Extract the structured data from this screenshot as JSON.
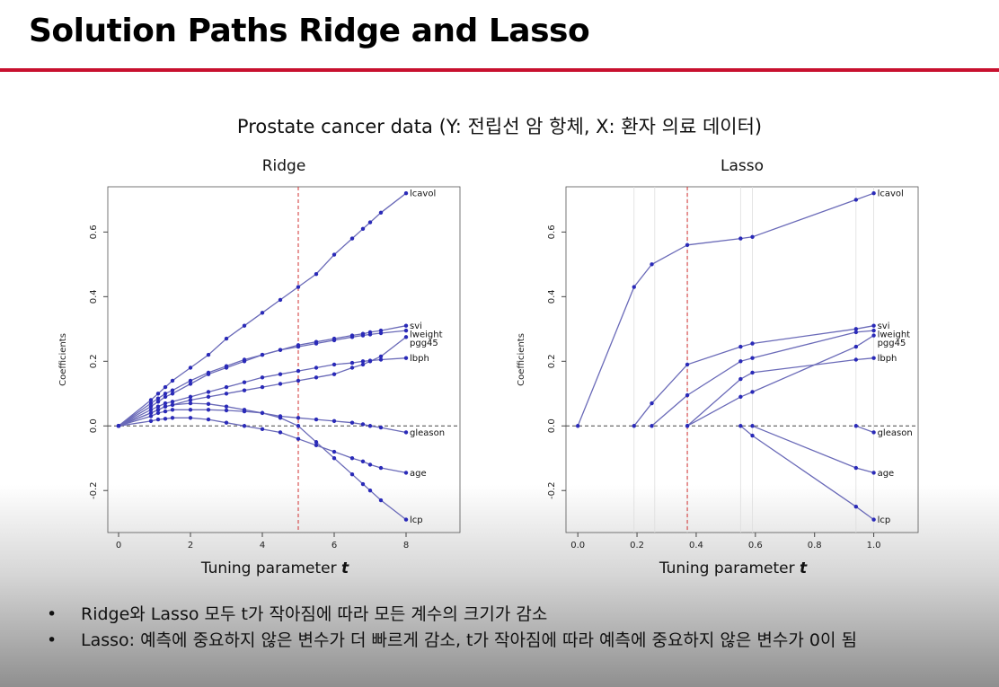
{
  "slide": {
    "title": "Solution Paths Ridge and Lasso",
    "subtitle": "Prostate cancer data (Y: 전립선 암 항체, X: 환자 의료 데이터)",
    "bullets": [
      "Ridge와 Lasso 모두 t가 작아짐에 따라 모든 계수의 크기가 감소",
      "Lasso: 예측에 중요하지 않은 변수가 더 빠르게 감소, t가 작아짐에 따라 예측에 중요하지 않은 변수가 0이 됨"
    ],
    "bullet_symbol": "•"
  },
  "colors": {
    "accent_rule": "#c8102e",
    "path": "#2a2ab8",
    "path_line": "#6a6ab8",
    "vline": "#d03030"
  },
  "chart_data": [
    {
      "type": "line",
      "title": "Ridge",
      "xlabel": "Tuning parameter ",
      "xlabel_symbol": "t",
      "ylabel": "Coefficients",
      "xlim": [
        -0.3,
        9.5
      ],
      "ylim": [
        -0.33,
        0.74
      ],
      "xticks": [
        0,
        2,
        4,
        6,
        8
      ],
      "yticks": [
        -0.2,
        0.0,
        0.2,
        0.4,
        0.6
      ],
      "vline": 5.0,
      "hline": 0.0,
      "markers": true,
      "x": [
        0,
        0.9,
        1.1,
        1.3,
        1.5,
        2.0,
        2.5,
        3.0,
        3.5,
        4.0,
        4.5,
        5.0,
        5.5,
        6.0,
        6.5,
        6.8,
        7.0,
        7.3,
        8.0
      ],
      "series": [
        {
          "name": "lcavol",
          "values": [
            0,
            0.08,
            0.1,
            0.12,
            0.14,
            0.18,
            0.22,
            0.27,
            0.31,
            0.35,
            0.39,
            0.43,
            0.47,
            0.53,
            0.58,
            0.61,
            0.63,
            0.66,
            0.72
          ]
        },
        {
          "name": "svi",
          "values": [
            0,
            0.06,
            0.075,
            0.09,
            0.1,
            0.13,
            0.16,
            0.18,
            0.2,
            0.22,
            0.235,
            0.25,
            0.26,
            0.27,
            0.28,
            0.285,
            0.29,
            0.295,
            0.31
          ]
        },
        {
          "name": "lweight",
          "values": [
            0,
            0.07,
            0.085,
            0.1,
            0.11,
            0.14,
            0.165,
            0.185,
            0.205,
            0.22,
            0.235,
            0.245,
            0.255,
            0.265,
            0.275,
            0.28,
            0.283,
            0.287,
            0.295
          ]
        },
        {
          "name": "pgg45",
          "values": [
            0,
            0.04,
            0.05,
            0.06,
            0.065,
            0.08,
            0.09,
            0.1,
            0.11,
            0.12,
            0.13,
            0.14,
            0.15,
            0.16,
            0.18,
            0.19,
            0.2,
            0.215,
            0.275
          ]
        },
        {
          "name": "lbph",
          "values": [
            0,
            0.05,
            0.06,
            0.07,
            0.075,
            0.09,
            0.105,
            0.12,
            0.135,
            0.15,
            0.16,
            0.17,
            0.18,
            0.19,
            0.195,
            0.2,
            0.202,
            0.205,
            0.21
          ]
        },
        {
          "name": "gleason",
          "values": [
            0,
            0.03,
            0.04,
            0.045,
            0.05,
            0.05,
            0.05,
            0.048,
            0.045,
            0.04,
            0.03,
            0.025,
            0.02,
            0.015,
            0.01,
            0.005,
            0.0,
            -0.005,
            -0.02
          ]
        },
        {
          "name": "age",
          "values": [
            0,
            0.015,
            0.02,
            0.022,
            0.025,
            0.025,
            0.02,
            0.01,
            0.0,
            -0.01,
            -0.02,
            -0.04,
            -0.06,
            -0.08,
            -0.1,
            -0.11,
            -0.12,
            -0.13,
            -0.145
          ]
        },
        {
          "name": "lcp",
          "values": [
            0,
            0.04,
            0.05,
            0.06,
            0.065,
            0.07,
            0.068,
            0.06,
            0.05,
            0.04,
            0.025,
            0.0,
            -0.05,
            -0.1,
            -0.15,
            -0.18,
            -0.2,
            -0.23,
            -0.29
          ]
        }
      ]
    },
    {
      "type": "line",
      "title": "Lasso",
      "xlabel": "Tuning parameter ",
      "xlabel_symbol": "t",
      "ylabel": "Coefficients",
      "xlim": [
        -0.04,
        1.15
      ],
      "ylim": [
        -0.33,
        0.74
      ],
      "xticks": [
        0.0,
        0.2,
        0.4,
        0.6,
        0.8,
        1.0
      ],
      "yticks": [
        -0.2,
        0.0,
        0.2,
        0.4,
        0.6
      ],
      "vline": 0.37,
      "hline": 0.0,
      "knot_lines": [
        0.19,
        0.26,
        0.37,
        0.55,
        0.59,
        0.94,
        1.0
      ],
      "markers": true,
      "series": [
        {
          "name": "lcavol",
          "points": [
            [
              0,
              0
            ],
            [
              0.19,
              0.43
            ],
            [
              0.25,
              0.5
            ],
            [
              0.37,
              0.56
            ],
            [
              0.55,
              0.58
            ],
            [
              0.59,
              0.585
            ],
            [
              0.94,
              0.7
            ],
            [
              1.0,
              0.72
            ]
          ]
        },
        {
          "name": "svi",
          "points": [
            [
              0.19,
              0
            ],
            [
              0.25,
              0.07
            ],
            [
              0.37,
              0.19
            ],
            [
              0.55,
              0.245
            ],
            [
              0.59,
              0.255
            ],
            [
              0.94,
              0.3
            ],
            [
              1.0,
              0.31
            ]
          ]
        },
        {
          "name": "lweight",
          "points": [
            [
              0.25,
              0
            ],
            [
              0.37,
              0.095
            ],
            [
              0.55,
              0.2
            ],
            [
              0.59,
              0.21
            ],
            [
              0.94,
              0.29
            ],
            [
              1.0,
              0.295
            ]
          ]
        },
        {
          "name": "pgg45",
          "points": [
            [
              0.37,
              0
            ],
            [
              0.55,
              0.09
            ],
            [
              0.59,
              0.105
            ],
            [
              0.94,
              0.245
            ],
            [
              1.0,
              0.28
            ]
          ]
        },
        {
          "name": "lbph",
          "points": [
            [
              0.37,
              0
            ],
            [
              0.55,
              0.145
            ],
            [
              0.59,
              0.165
            ],
            [
              0.94,
              0.205
            ],
            [
              1.0,
              0.21
            ]
          ]
        },
        {
          "name": "gleason",
          "points": [
            [
              0.94,
              0
            ],
            [
              1.0,
              -0.02
            ]
          ]
        },
        {
          "name": "age",
          "points": [
            [
              0.59,
              0
            ],
            [
              0.94,
              -0.13
            ],
            [
              1.0,
              -0.145
            ]
          ]
        },
        {
          "name": "lcp",
          "points": [
            [
              0.55,
              0
            ],
            [
              0.59,
              -0.03
            ],
            [
              0.94,
              -0.25
            ],
            [
              1.0,
              -0.29
            ]
          ]
        }
      ]
    }
  ]
}
